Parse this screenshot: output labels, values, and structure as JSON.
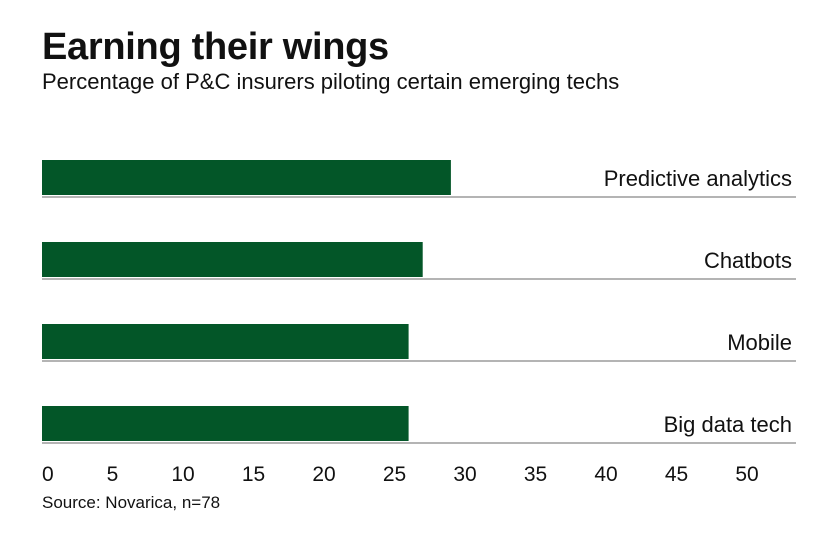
{
  "chart_data": {
    "type": "bar",
    "orientation": "horizontal",
    "title": "Earning their wings",
    "subtitle": "Percentage of P&C insurers piloting certain emerging techs",
    "source": "Source: Novarica, n=78",
    "categories": [
      "Predictive analytics",
      "Chatbots",
      "Mobile",
      "Big data tech"
    ],
    "values": [
      29,
      27,
      26,
      26
    ],
    "xlim": [
      0,
      54
    ],
    "xticks": [
      0,
      5,
      10,
      15,
      20,
      25,
      30,
      35,
      40,
      45,
      50
    ],
    "legend": "none",
    "grid": false,
    "bar_color": "#035628",
    "rule_color": "#888888"
  }
}
